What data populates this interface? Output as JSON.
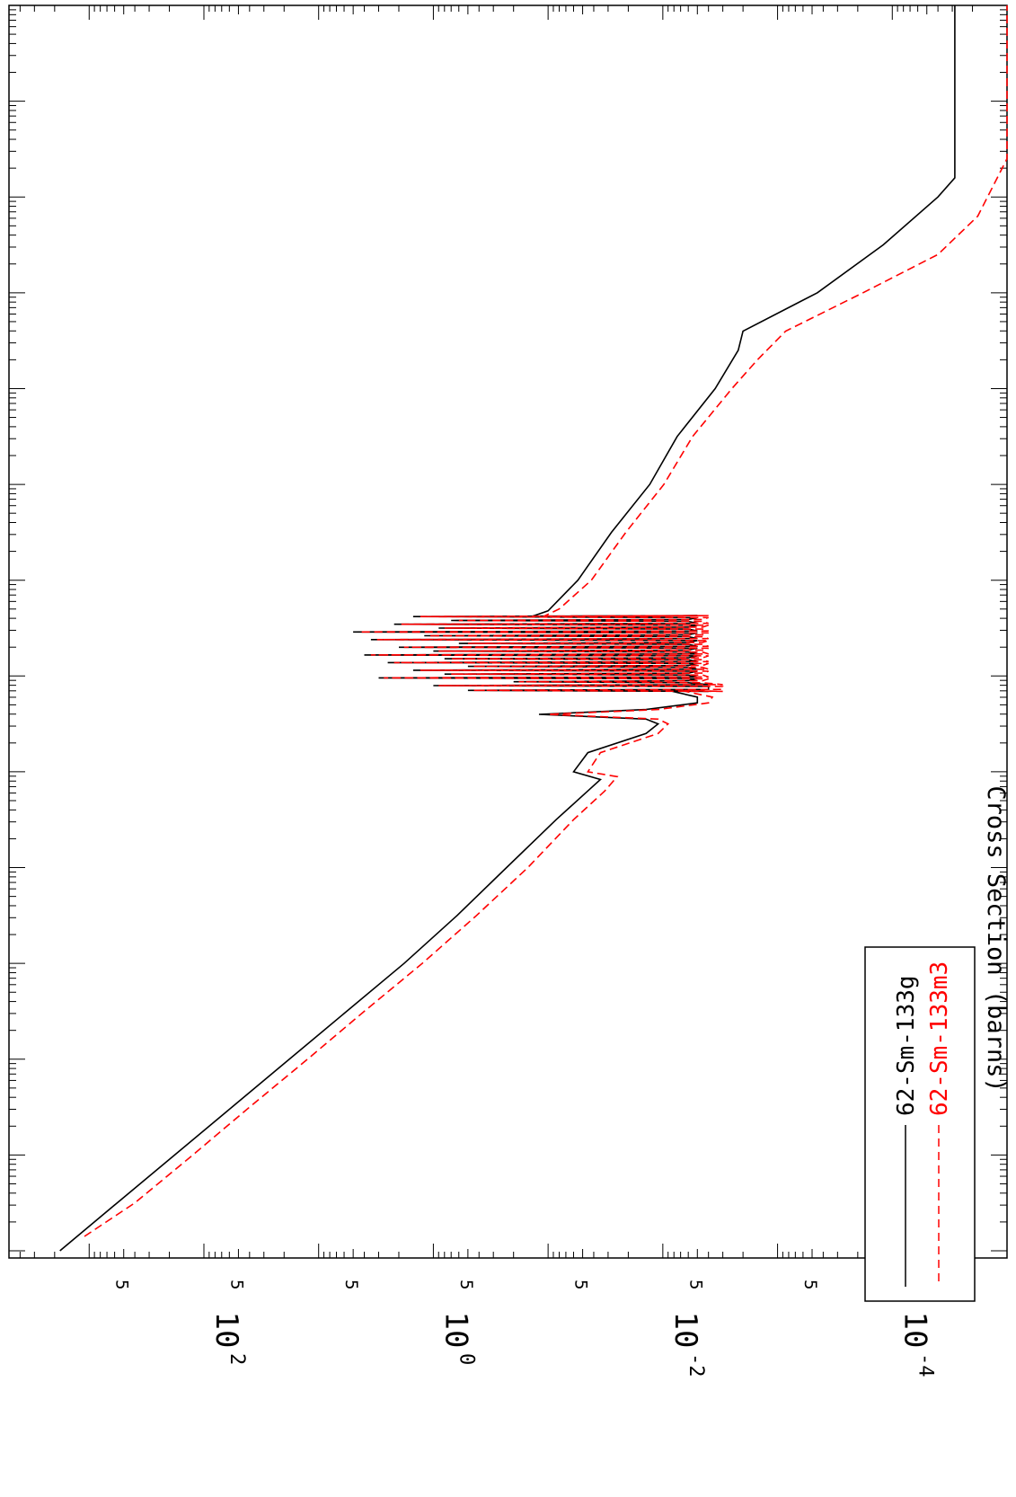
{
  "chart_data": {
    "type": "line",
    "title": "",
    "xlabel": "",
    "ylabel": "Cross Section (barns)",
    "y_scale": "log",
    "x_scale": "log",
    "ylim": [
      1e-05,
      5000
    ],
    "y_major_ticks": [
      {
        "value": 100,
        "base": "10",
        "exp": "2"
      },
      {
        "value": 1,
        "base": "10",
        "exp": "0"
      },
      {
        "value": 0.01,
        "base": "10",
        "exp": "-2"
      },
      {
        "value": 0.0001,
        "base": "10",
        "exp": "-4"
      }
    ],
    "y_minor_labels": [
      {
        "value": 500,
        "label": "5"
      },
      {
        "value": 5,
        "label": "5"
      },
      {
        "value": 0.05,
        "label": "5"
      },
      {
        "value": 0.0005,
        "label": "5"
      },
      {
        "value": 50,
        "label": "5"
      },
      {
        "value": 0.5,
        "label": "5"
      },
      {
        "value": 0.005,
        "label": "5"
      },
      {
        "value": 5e-05,
        "label": "5"
      }
    ],
    "x_decades": 13,
    "grid": false,
    "legend_position": "bottom-right (rotated page)",
    "rotated": true,
    "series": [
      {
        "name": "62-Sm-133g",
        "color": "#000000",
        "dash": "solid",
        "points": [
          [
            0.0,
            1800
          ],
          [
            0.5,
            570
          ],
          [
            1.0,
            180
          ],
          [
            1.5,
            57
          ],
          [
            2.0,
            18
          ],
          [
            2.5,
            5.7
          ],
          [
            3.0,
            1.8
          ],
          [
            3.5,
            0.62
          ],
          [
            4.0,
            0.23
          ],
          [
            4.5,
            0.085
          ],
          [
            4.8,
            0.045
          ],
          [
            4.92,
            0.035
          ],
          [
            5.0,
            0.06
          ],
          [
            5.2,
            0.045
          ],
          [
            5.4,
            0.014
          ],
          [
            5.5,
            0.011
          ],
          [
            5.55,
            0.014
          ],
          [
            5.6,
            0.12
          ],
          [
            5.65,
            0.014
          ],
          [
            5.72,
            0.005
          ],
          [
            5.78,
            0.005
          ],
          [
            5.85,
            0.009
          ]
        ],
        "resonances": [
          [
            5.85,
            0.004,
            0.5
          ],
          [
            5.9,
            0.004,
            1.0
          ],
          [
            5.94,
            0.006,
            0.2
          ],
          [
            5.98,
            0.005,
            3.0
          ],
          [
            6.02,
            0.006,
            0.8
          ],
          [
            6.06,
            0.005,
            1.5
          ],
          [
            6.1,
            0.006,
            0.5
          ],
          [
            6.14,
            0.005,
            2.5
          ],
          [
            6.18,
            0.006,
            0.8
          ],
          [
            6.22,
            0.005,
            4.0
          ],
          [
            6.26,
            0.006,
            1.0
          ],
          [
            6.3,
            0.005,
            2.0
          ],
          [
            6.34,
            0.006,
            0.6
          ],
          [
            6.38,
            0.005,
            3.5
          ],
          [
            6.42,
            0.006,
            1.2
          ],
          [
            6.46,
            0.005,
            5.0
          ],
          [
            6.5,
            0.006,
            0.9
          ],
          [
            6.54,
            0.005,
            2.2
          ],
          [
            6.58,
            0.006,
            0.7
          ],
          [
            6.62,
            0.005,
            1.5
          ]
        ],
        "tail": [
          [
            6.62,
            0.14
          ],
          [
            6.68,
            0.1
          ],
          [
            7.0,
            0.055
          ],
          [
            7.5,
            0.028
          ],
          [
            8.0,
            0.013
          ],
          [
            8.5,
            0.0075
          ],
          [
            9.0,
            0.0035
          ],
          [
            9.4,
            0.0022
          ],
          [
            9.6,
            0.002
          ],
          [
            10.0,
            0.00045
          ],
          [
            10.5,
            0.00012
          ],
          [
            11.0,
            4e-05
          ],
          [
            11.2,
            2.85e-05
          ],
          [
            11.5,
            2.85e-05
          ],
          [
            13.0,
            2.85e-05
          ]
        ]
      },
      {
        "name": "62-Sm-133m3",
        "color": "#ff0000",
        "dash": "dashed",
        "points": [
          [
            0.15,
            1100
          ],
          [
            0.5,
            400
          ],
          [
            1.0,
            125
          ],
          [
            1.5,
            40
          ],
          [
            2.0,
            12.5
          ],
          [
            2.5,
            4.0
          ],
          [
            3.0,
            1.25
          ],
          [
            3.5,
            0.42
          ],
          [
            4.0,
            0.15
          ],
          [
            4.5,
            0.06
          ],
          [
            4.8,
            0.032
          ],
          [
            4.95,
            0.025
          ],
          [
            5.0,
            0.045
          ],
          [
            5.2,
            0.035
          ],
          [
            5.4,
            0.011
          ],
          [
            5.5,
            0.009
          ],
          [
            5.55,
            0.011
          ],
          [
            5.6,
            0.1
          ],
          [
            5.65,
            0.011
          ],
          [
            5.72,
            0.004
          ],
          [
            5.78,
            0.0037
          ],
          [
            5.85,
            0.007
          ]
        ],
        "resonances": [
          [
            5.85,
            0.003,
            0.45
          ],
          [
            5.9,
            0.003,
            0.9
          ],
          [
            5.94,
            0.0045,
            0.18
          ],
          [
            5.98,
            0.004,
            2.7
          ],
          [
            6.02,
            0.0045,
            0.7
          ],
          [
            6.06,
            0.004,
            1.3
          ],
          [
            6.1,
            0.0045,
            0.45
          ],
          [
            6.14,
            0.004,
            2.2
          ],
          [
            6.18,
            0.0045,
            0.7
          ],
          [
            6.22,
            0.004,
            3.5
          ],
          [
            6.26,
            0.0045,
            0.9
          ],
          [
            6.3,
            0.004,
            1.8
          ],
          [
            6.34,
            0.0045,
            0.5
          ],
          [
            6.38,
            0.004,
            3.1
          ],
          [
            6.42,
            0.0045,
            1.1
          ],
          [
            6.46,
            0.004,
            4.4
          ],
          [
            6.5,
            0.0045,
            0.8
          ],
          [
            6.54,
            0.004,
            1.9
          ],
          [
            6.58,
            0.0045,
            0.6
          ],
          [
            6.62,
            0.004,
            1.3
          ]
        ],
        "tail": [
          [
            6.62,
            0.11
          ],
          [
            6.7,
            0.08
          ],
          [
            7.0,
            0.042
          ],
          [
            7.5,
            0.021
          ],
          [
            8.0,
            0.0098
          ],
          [
            8.5,
            0.0055
          ],
          [
            9.0,
            0.0025
          ],
          [
            9.3,
            0.0015
          ],
          [
            9.6,
            0.00085
          ],
          [
            10.0,
            0.00018
          ],
          [
            10.4,
            4e-05
          ],
          [
            10.8,
            1.8e-05
          ],
          [
            11.4,
            9.5e-06
          ],
          [
            12.0,
            6.5e-06
          ],
          [
            13.0,
            4.5e-06
          ]
        ]
      }
    ]
  }
}
